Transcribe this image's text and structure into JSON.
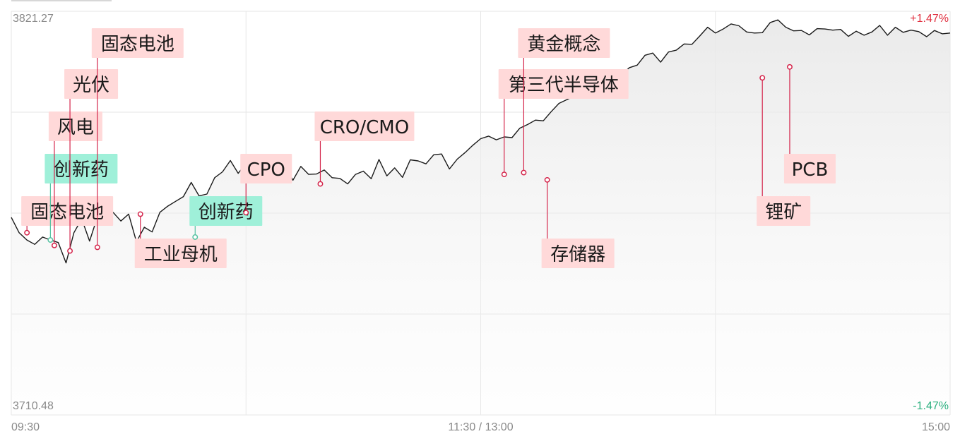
{
  "chart_data": {
    "type": "line",
    "y_max_label": "3821.27",
    "y_min_label": "3710.48",
    "pct_max_label": "+1.47%",
    "pct_min_label": "-1.47%",
    "x_tick_labels": [
      "09:30",
      "11:30 / 13:00",
      "15:00"
    ],
    "ylim": [
      3710.48,
      3821.27
    ],
    "grid": true,
    "colors": {
      "line": "#1a1a1a",
      "up": "#e02f3f",
      "down": "#2bb07f",
      "red_tag_bg": "#ffd9d9",
      "green_tag_bg": "#9ff0d9",
      "red_stem": "#d4244a",
      "green_stem": "#55c2a2",
      "grid": "#e6e6e6"
    },
    "series": [
      {
        "x_index": [
          0,
          2,
          4,
          6,
          8,
          10,
          12,
          14,
          16,
          18,
          20,
          22,
          24,
          26,
          28,
          30,
          32,
          34,
          36,
          38,
          40,
          42,
          44,
          46,
          48,
          50,
          52,
          54,
          56,
          58,
          60,
          62,
          64,
          66,
          68,
          70,
          72,
          74,
          76,
          78,
          80,
          82,
          84,
          86,
          88,
          90,
          92,
          94,
          96,
          98,
          100,
          102,
          104,
          106,
          108,
          110,
          112,
          114,
          116,
          118,
          120,
          122,
          124,
          126,
          128,
          130,
          132,
          134,
          136,
          138,
          140,
          142,
          144,
          146,
          148,
          150,
          152,
          154,
          156,
          158,
          160,
          162,
          164,
          166,
          168,
          170,
          172,
          174,
          176,
          178,
          180,
          182,
          184,
          186,
          188,
          190,
          192,
          194,
          196,
          198,
          200,
          202,
          204,
          206,
          208,
          210,
          212,
          214,
          216,
          218,
          220,
          222,
          224,
          226,
          228,
          230,
          232,
          234,
          236,
          238,
          240
        ],
        "values": [
          3764.7,
          3760.5,
          3758.5,
          3757.3,
          3759.3,
          3758.5,
          3757.8,
          3752.2,
          3760.5,
          3764.3,
          3758.2,
          3764.8,
          3765.9,
          3766.1,
          3763.7,
          3765.6,
          3758.0,
          3762.0,
          3760.7,
          3766.1,
          3767.8,
          3769.1,
          3770.4,
          3774.3,
          3770.6,
          3771.1,
          3775.6,
          3777.2,
          3780.3,
          3776.8,
          3779.5,
          3780.3,
          3777.2,
          3778.8,
          3780.1,
          3778.7,
          3774.9,
          3778.7,
          3776.5,
          3776.6,
          3777.7,
          3775.6,
          3775.4,
          3773.9,
          3776.5,
          3777.4,
          3775.3,
          3780.6,
          3776.1,
          3778.3,
          3775.7,
          3780.5,
          3780.2,
          3779.4,
          3781.9,
          3782.1,
          3778.0,
          3780.7,
          3782.5,
          3784.5,
          3786.3,
          3787.0,
          3786.0,
          3786.8,
          3786.6,
          3789.2,
          3790.2,
          3791.4,
          3791.2,
          3793.7,
          3796.0,
          3797.0,
          3798.1,
          3799.1,
          3803.7,
          3799.7,
          3800.2,
          3800.1,
          3803.8,
          3805.8,
          3806.5,
          3809.2,
          3809.8,
          3807.3,
          3810.1,
          3810.6,
          3812.3,
          3812.2,
          3814.5,
          3816.9,
          3815.3,
          3816.4,
          3817.8,
          3817.3,
          3815.6,
          3815.3,
          3815.4,
          3818.2,
          3818.9,
          3816.9,
          3815.9,
          3816.0,
          3814.8,
          3816.5,
          3816.4,
          3816.1,
          3816.3,
          3814.4,
          3815.8,
          3814.7,
          3815.6,
          3817.4,
          3814.7,
          3816.9,
          3815.5,
          3816.1,
          3815.7,
          3814.3,
          3816.0,
          3815.1,
          3815.3
        ]
      }
    ],
    "annotations": [
      {
        "label": "固态电池",
        "x_index": 4,
        "value": 3760.5,
        "tone": "red",
        "tag_row": 4
      },
      {
        "label": "创新药",
        "x_index": 10,
        "value": 3758.5,
        "tone": "green",
        "tag_row": 3
      },
      {
        "label": "风电",
        "x_index": 11,
        "value": 3757.0,
        "tone": "red",
        "tag_row": 2
      },
      {
        "label": "光伏",
        "x_index": 15,
        "value": 3755.5,
        "tone": "red",
        "tag_row": 1
      },
      {
        "label": "固态电池",
        "x_index": 22,
        "value": 3756.5,
        "tone": "red",
        "tag_row": 0
      },
      {
        "label": "工业母机",
        "x_index": 33,
        "value": 3765.6,
        "tone": "red",
        "tag_row": 5
      },
      {
        "label": "创新药",
        "x_index": 47,
        "value": 3759.3,
        "tone": "green",
        "tag_row": 4
      },
      {
        "label": "CPO",
        "x_index": 60,
        "value": 3766.0,
        "tone": "red",
        "tag_row": 3
      },
      {
        "label": "CRO/CMO",
        "x_index": 79,
        "value": 3773.9,
        "tone": "red",
        "tag_row": 2
      },
      {
        "label": "第三代半导体",
        "x_index": 126,
        "value": 3776.5,
        "tone": "red",
        "tag_row": 1
      },
      {
        "label": "黄金概念",
        "x_index": 131,
        "value": 3777.0,
        "tone": "red",
        "tag_row": 0
      },
      {
        "label": "存储器",
        "x_index": 137,
        "value": 3775.0,
        "tone": "red",
        "tag_row": 5
      },
      {
        "label": "锂矿",
        "x_index": 192,
        "value": 3803.0,
        "tone": "red",
        "tag_row": 4
      },
      {
        "label": "PCB",
        "x_index": 199,
        "value": 3806.0,
        "tone": "red",
        "tag_row": 3
      }
    ]
  }
}
